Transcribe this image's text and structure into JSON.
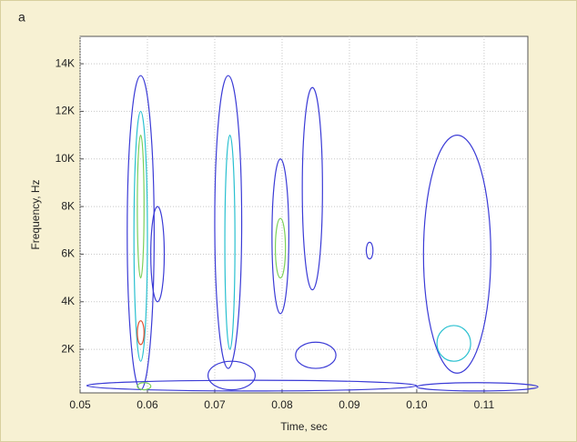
{
  "chart_data": {
    "type": "contour",
    "panel_label": "a",
    "x_label": "Time, sec",
    "y_label": "Frequency, Hz",
    "xlim": [
      0.05,
      0.1165
    ],
    "ylim": [
      170,
      15150
    ],
    "xticks": [
      0.05,
      0.06,
      0.07,
      0.08,
      0.09,
      {
        "value": 0.1,
        "label": "0.10"
      },
      0.11
    ],
    "yticks": [
      {
        "value": 2000,
        "label": "2K"
      },
      {
        "value": 4000,
        "label": "4K"
      },
      {
        "value": 6000,
        "label": "6K"
      },
      {
        "value": 8000,
        "label": "8K"
      },
      {
        "value": 10000,
        "label": "10K"
      },
      {
        "value": 12000,
        "label": "12K"
      },
      {
        "value": 14000,
        "label": "14K"
      }
    ],
    "grid": true,
    "regions": [
      {
        "time": [
          0.051,
          0.1
        ],
        "freq": [
          250,
          700
        ],
        "color": "#3b3bd6"
      },
      {
        "time": [
          0.1,
          0.118
        ],
        "freq": [
          250,
          600
        ],
        "color": "#3b3bd6"
      },
      {
        "time": [
          0.057,
          0.061
        ],
        "freq": [
          300,
          13500
        ],
        "color": "#3b3bd6"
      },
      {
        "time": [
          0.058,
          0.06
        ],
        "freq": [
          1500,
          12000
        ],
        "color": "#29c0d0"
      },
      {
        "time": [
          0.0585,
          0.0595
        ],
        "freq": [
          5000,
          11000
        ],
        "color": "#7cd05a"
      },
      {
        "time": [
          0.0585,
          0.0595
        ],
        "freq": [
          2200,
          3200
        ],
        "color": "#e05030"
      },
      {
        "time": [
          0.0585,
          0.0605
        ],
        "freq": [
          300,
          600
        ],
        "color": "#7cd05a"
      },
      {
        "time": [
          0.0605,
          0.0625
        ],
        "freq": [
          4000,
          8000
        ],
        "color": "#3b3bd6"
      },
      {
        "time": [
          0.07,
          0.074
        ],
        "freq": [
          1200,
          13500
        ],
        "color": "#3b3bd6"
      },
      {
        "time": [
          0.0715,
          0.073
        ],
        "freq": [
          2000,
          11000
        ],
        "color": "#29c0d0"
      },
      {
        "time": [
          0.069,
          0.076
        ],
        "freq": [
          300,
          1500
        ],
        "color": "#3b3bd6"
      },
      {
        "time": [
          0.0785,
          0.081
        ],
        "freq": [
          3500,
          10000
        ],
        "color": "#3b3bd6"
      },
      {
        "time": [
          0.079,
          0.0805
        ],
        "freq": [
          5000,
          7500
        ],
        "color": "#7cd05a"
      },
      {
        "time": [
          0.083,
          0.086
        ],
        "freq": [
          4500,
          13000
        ],
        "color": "#3b3bd6"
      },
      {
        "time": [
          0.082,
          0.088
        ],
        "freq": [
          1200,
          2300
        ],
        "color": "#3b3bd6"
      },
      {
        "time": [
          0.0925,
          0.0935
        ],
        "freq": [
          5800,
          6500
        ],
        "color": "#3b3bd6"
      },
      {
        "time": [
          0.101,
          0.111
        ],
        "freq": [
          1000,
          11000
        ],
        "color": "#3b3bd6"
      },
      {
        "time": [
          0.103,
          0.108
        ],
        "freq": [
          1500,
          3000
        ],
        "color": "#29c0d0"
      }
    ]
  }
}
